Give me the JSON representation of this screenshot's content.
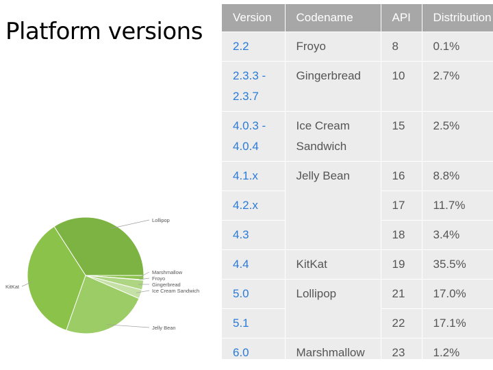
{
  "slide": {
    "title": "Platform versions"
  },
  "table": {
    "headers": [
      "Version",
      "Codename",
      "API",
      "Distribution"
    ],
    "rows": [
      {
        "version": "2.2",
        "codename": "Froyo",
        "api": "8",
        "dist": "0.1%"
      },
      {
        "version": "2.3.3 - 2.3.7",
        "codename": "Gingerbread",
        "api": "10",
        "dist": "2.7%"
      },
      {
        "version": "4.0.3 - 4.0.4",
        "codename": "Ice Cream Sandwich",
        "api": "15",
        "dist": "2.5%"
      },
      {
        "version": "4.1.x",
        "codename": "Jelly Bean",
        "api": "16",
        "dist": "8.8%"
      },
      {
        "version": "4.2.x",
        "codename": "",
        "api": "17",
        "dist": "11.7%"
      },
      {
        "version": "4.3",
        "codename": "",
        "api": "18",
        "dist": "3.4%"
      },
      {
        "version": "4.4",
        "codename": "KitKat",
        "api": "19",
        "dist": "35.5%"
      },
      {
        "version": "5.0",
        "codename": "Lollipop",
        "api": "21",
        "dist": "17.0%"
      },
      {
        "version": "5.1",
        "codename": "",
        "api": "22",
        "dist": "17.1%"
      },
      {
        "version": "6.0",
        "codename": "Marshmallow",
        "api": "23",
        "dist": "1.2%"
      }
    ]
  },
  "chart_data": {
    "type": "pie",
    "slices": [
      {
        "label": "Lollipop",
        "value": 34.1,
        "color": "#7cb342"
      },
      {
        "label": "Marshmallow",
        "value": 1.2,
        "color": "#8bc34a"
      },
      {
        "label": "Froyo",
        "value": 0.1,
        "color": "#9ccc65"
      },
      {
        "label": "Gingerbread",
        "value": 2.7,
        "color": "#aed581"
      },
      {
        "label": "Ice Cream Sandwich",
        "value": 2.5,
        "color": "#c5e1a5"
      },
      {
        "label": "Jelly Bean",
        "value": 23.9,
        "color": "#9ccc65"
      },
      {
        "label": "KitKat",
        "value": 35.5,
        "color": "#8bc34a"
      }
    ]
  }
}
